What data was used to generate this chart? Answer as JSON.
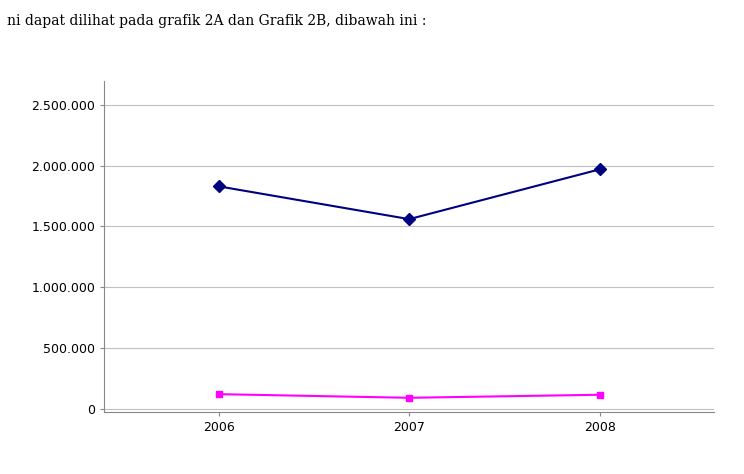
{
  "years": [
    2006,
    2007,
    2008
  ],
  "total_simpanan": [
    1830000,
    1560000,
    1970000
  ],
  "laba_rugi": [
    120000,
    90000,
    115000
  ],
  "simpanan_color": "#000080",
  "laba_rugi_color": "#FF00FF",
  "yticks": [
    0,
    500000,
    1000000,
    1500000,
    2000000,
    2500000
  ],
  "ytick_labels": [
    "0",
    "500.000",
    "1.000.000",
    "1.500.000",
    "2.000.000",
    "2.500.000"
  ],
  "xticks": [
    2006,
    2007,
    2008
  ],
  "ylim": [
    -30000,
    2700000
  ],
  "xlim": [
    2005.4,
    2008.6
  ],
  "header_text": "ni dapat dilihat pada grafik 2A dan Grafik 2B, dibawah ini :",
  "background_color": "#ffffff",
  "plot_bg_color": "#ffffff",
  "grid_color": "#c0c0c0"
}
